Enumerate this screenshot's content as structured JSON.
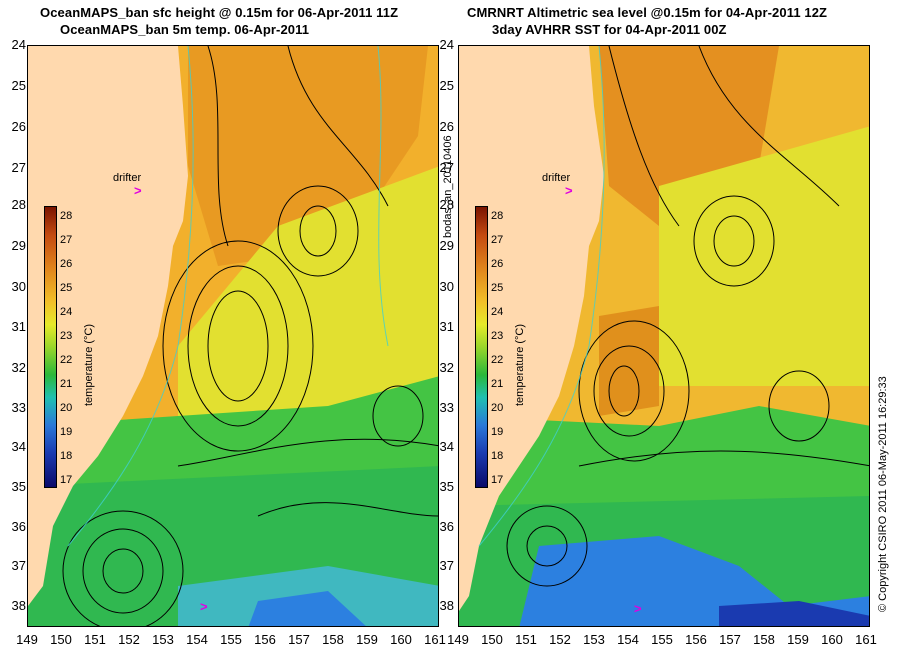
{
  "left_panel": {
    "title_line1": "OceanMAPS_ban sfc height @ 0.15m for 06-Apr-2011 11Z",
    "title_line2": "OceanMAPS_ban 5m temp. 06-Apr-2011",
    "drifter_label": "drifter",
    "drifter_marker": ">"
  },
  "right_panel": {
    "title_line1": "CMRNRT Altimetric sea level  @0.15m  for 04-Apr-2011 12Z",
    "title_line2": "3day AVHRR SST for 04-Apr-2011 00Z",
    "drifter_label": "drifter",
    "drifter_marker": ">"
  },
  "axes": {
    "latitudes": [
      "24",
      "25",
      "26",
      "27",
      "28",
      "29",
      "30",
      "31",
      "32",
      "33",
      "34",
      "35",
      "36",
      "37",
      "38"
    ],
    "longitudes": [
      "149",
      "150",
      "151",
      "152",
      "153",
      "154",
      "155",
      "156",
      "157",
      "158",
      "159",
      "160",
      "161"
    ]
  },
  "colorbar": {
    "label": "temperature (°C)",
    "ticks": [
      "28",
      "27",
      "26",
      "25",
      "24",
      "23",
      "22",
      "21",
      "20",
      "19",
      "18",
      "17"
    ]
  },
  "side_text": {
    "run_id": "bodas_an_20110406",
    "copyright": "© Copyright CSIRO 2011   06-May-2011 16:29:33"
  },
  "colors": {
    "land": "#ffd9ae",
    "warm": "#f0a020",
    "mid": "#e0e030",
    "cool": "#40c040",
    "cold": "#2070e0",
    "contour": "#000000",
    "isobath": "#40d0d0",
    "drifter": "#e000e0"
  }
}
